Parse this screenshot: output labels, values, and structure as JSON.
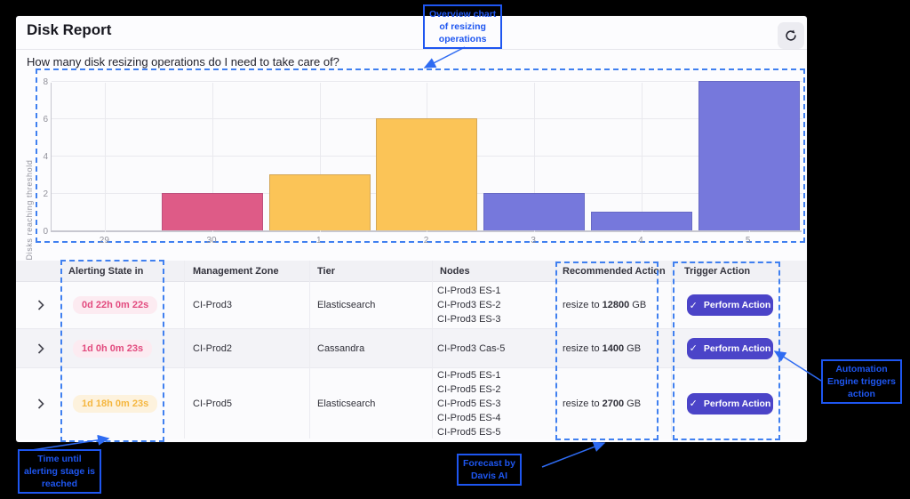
{
  "header": {
    "title": "Disk Report",
    "question": "How many disk resizing operations do I need to take care of?"
  },
  "chart_data": {
    "type": "bar",
    "title": "",
    "xlabel": "",
    "ylabel": "Disks reaching threshold",
    "categories": [
      "29",
      "30",
      "1",
      "2",
      "3",
      "4",
      "5"
    ],
    "values": [
      0,
      2,
      3,
      6,
      2,
      1,
      8
    ],
    "colors": [
      "#de5b87",
      "#de5b87",
      "#fbc457",
      "#fbc457",
      "#7678dc",
      "#7678dc",
      "#7678dc"
    ],
    "ylim": [
      0,
      8
    ],
    "yticks": [
      0,
      2,
      4,
      6,
      8
    ],
    "grid": true,
    "legend": "none"
  },
  "table": {
    "columns": [
      "Alerting State in",
      "Management Zone",
      "Tier",
      "Nodes",
      "Recommended Action",
      "Trigger Action"
    ],
    "rows": [
      {
        "alerting": "0d 22h 0m 22s",
        "severity": "critical",
        "zone": "CI-Prod3",
        "tier": "Elasticsearch",
        "nodes": [
          "CI-Prod3 ES-1",
          "CI-Prod3 ES-2",
          "CI-Prod3 ES-3"
        ],
        "action_prefix": "resize to ",
        "action_value": "12800",
        "action_unit": " GB",
        "button_label": "Perform Action",
        "button_check": "✓"
      },
      {
        "alerting": "1d 0h 0m 23s",
        "severity": "critical",
        "zone": "CI-Prod2",
        "tier": "Cassandra",
        "nodes": [
          "CI-Prod3 Cas-5"
        ],
        "action_prefix": "resize to ",
        "action_value": "1400",
        "action_unit": " GB",
        "button_label": "Perform Action",
        "button_check": "✓"
      },
      {
        "alerting": "1d 18h 0m 23s",
        "severity": "warning",
        "zone": "CI-Prod5",
        "tier": "Elasticsearch",
        "nodes": [
          "CI-Prod5 ES-1",
          "CI-Prod5 ES-2",
          "CI-Prod5 ES-3",
          "CI-Prod5 ES-4",
          "CI-Prod5 ES-5"
        ],
        "action_prefix": "resize to ",
        "action_value": "2700",
        "action_unit": " GB",
        "button_label": "Perform Action",
        "button_check": "✓"
      }
    ]
  },
  "annotations": {
    "overview": {
      "lines": [
        "Overview chart",
        "of resizing",
        "operations"
      ]
    },
    "time": {
      "lines": [
        "Time until",
        "alerting stage is",
        "reached"
      ]
    },
    "forecast": {
      "lines": [
        "Forecast by",
        "Davis AI"
      ]
    },
    "automation": {
      "lines": [
        "Automation",
        "Engine triggers",
        "action"
      ]
    }
  },
  "colors": {
    "button": "#4b44c8",
    "annotation": "#1e56f0",
    "dashed": "#4080f0",
    "arrow": "#2e6bf2",
    "critical_text": "#e24a7e",
    "critical_bg": "#fcebf1",
    "warning_text": "#f5b63e",
    "warning_bg": "#fdf2dd"
  }
}
